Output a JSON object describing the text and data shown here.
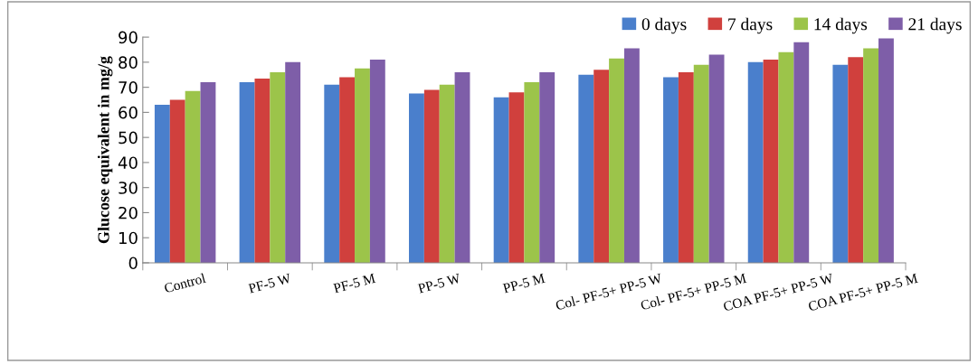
{
  "chart_data": {
    "type": "bar",
    "ylabel": "Glucose equivalent in mg/g",
    "categories": [
      "Control",
      "PF-5 W",
      "PF-5 M",
      "PP-5 W",
      "PP-5 M",
      "Col- PF-5+ PP-5 W",
      "Col- PF-5+ PP-5 M",
      "COA PF-5+ PP-5 W",
      "COA PF-5+ PP-5 M"
    ],
    "series": [
      {
        "name": "0 days",
        "color": "#4a7fcc",
        "values": [
          63,
          72,
          71,
          67.5,
          66,
          75,
          74,
          80,
          79
        ]
      },
      {
        "name": "7 days",
        "color": "#d0403d",
        "values": [
          65,
          73.5,
          74,
          69,
          68,
          77,
          76,
          81,
          82
        ]
      },
      {
        "name": "14 days",
        "color": "#9cc44a",
        "values": [
          68.5,
          76,
          77.5,
          71,
          72,
          81.5,
          79,
          84,
          85.5
        ]
      },
      {
        "name": "21 days",
        "color": "#7e5ea8",
        "values": [
          72,
          80,
          81,
          76,
          76,
          85.5,
          83,
          88,
          89.5
        ]
      }
    ],
    "ylim": [
      0,
      90
    ],
    "yticks": [
      0,
      10,
      20,
      30,
      40,
      50,
      60,
      70,
      80,
      90
    ],
    "grid": false,
    "legend": "top right"
  }
}
